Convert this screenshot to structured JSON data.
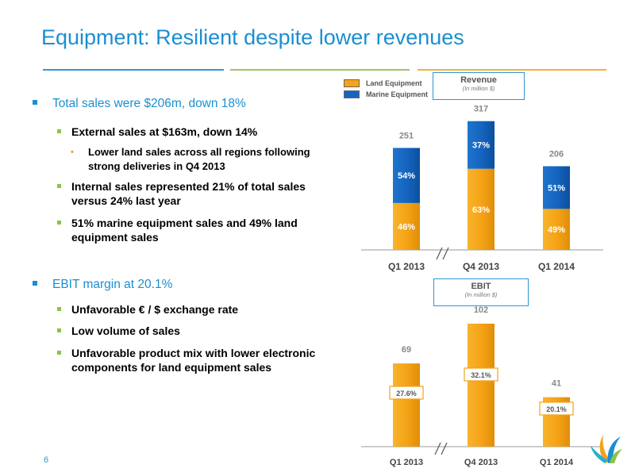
{
  "page": {
    "title": "Equipment: Resilient despite lower revenues",
    "page_number": "6"
  },
  "bullets": [
    {
      "level": 1,
      "text": "Total sales were $206m, down 18%"
    },
    {
      "level": 2,
      "lines": [
        "External sales at $163m, down 14%"
      ]
    },
    {
      "level": 3,
      "lines": [
        "Lower land sales across all regions following",
        "strong deliveries in Q4 2013"
      ]
    },
    {
      "level": 2,
      "lines": [
        "Internal sales represented 21% of total sales",
        "versus 24% last year"
      ]
    },
    {
      "level": 2,
      "lines": [
        "51% marine equipment sales and 49% land",
        "equipment sales"
      ]
    },
    {
      "level": 1,
      "text": "EBIT margin at 20.1%"
    },
    {
      "level": 2,
      "lines": [
        "Unfavorable € / $ exchange rate"
      ]
    },
    {
      "level": 2,
      "lines": [
        "Low volume of sales"
      ]
    },
    {
      "level": 2,
      "lines": [
        "Unfavorable product mix with lower electronic",
        "components for land equipment sales"
      ]
    }
  ],
  "legend": {
    "land": "Land Equipment",
    "marine": "Marine Equipment"
  },
  "colors": {
    "land": "#f6a316",
    "marine": "#1565c0",
    "accent": "#1a8fd1",
    "green": "#8cc34a"
  },
  "chart_data": [
    {
      "type": "bar",
      "title": "Revenue",
      "subtitle": "(In million $)",
      "categories": [
        "Q1 2013",
        "Q4 2013",
        "Q1 2014"
      ],
      "totals": [
        251,
        317,
        206
      ],
      "series": [
        {
          "name": "Land Equipment",
          "shares_pct": [
            46,
            63,
            49
          ],
          "labels": [
            "46%",
            "63%",
            "49%"
          ]
        },
        {
          "name": "Marine Equipment",
          "shares_pct": [
            54,
            37,
            51
          ],
          "labels": [
            "54%",
            "37%",
            "51%"
          ]
        }
      ],
      "axis_break_between": [
        "Q1 2013",
        "Q4 2013"
      ]
    },
    {
      "type": "bar",
      "title": "EBIT",
      "subtitle": "(In million $)",
      "categories": [
        "Q1 2013",
        "Q4 2013",
        "Q1 2014"
      ],
      "values": [
        69,
        102,
        41
      ],
      "margin_labels": [
        "27.6%",
        "32.1%",
        "20.1%"
      ],
      "axis_break_between": [
        "Q1 2013",
        "Q4 2013"
      ]
    }
  ]
}
